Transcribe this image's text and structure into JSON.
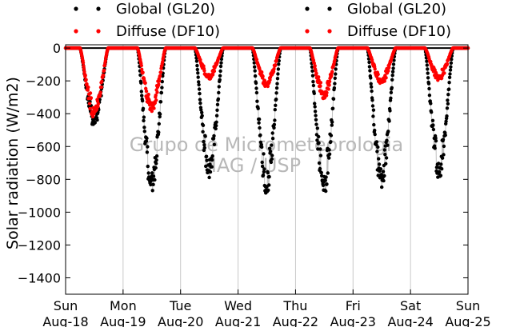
{
  "chart_data": {
    "type": "scatter",
    "ylabel": "Solar radiation (W/m2)",
    "ylim": [
      -1500,
      20
    ],
    "yticks": [
      0,
      -200,
      -400,
      -600,
      -800,
      -1000,
      -1200,
      -1400
    ],
    "xlim": [
      0,
      7
    ],
    "xtick_days": [
      "Sun",
      "Mon",
      "Tue",
      "Wed",
      "Thu",
      "Fri",
      "Sat",
      "Sun"
    ],
    "xtick_dates": [
      "Aug-18",
      "Aug-19",
      "Aug-20",
      "Aug-21",
      "Aug-22",
      "Aug-23",
      "Aug-24",
      "Aug-25"
    ],
    "grid": "vertical at day boundaries",
    "legend_position": "top, two columns",
    "zero_line": true,
    "watermark": [
      "Grupo de Micrometeorologia",
      "IAG / USP"
    ],
    "series": [
      {
        "name": "Global (GL20)",
        "color": "#000000",
        "daily_minimum": [
          -480,
          -880,
          -800,
          -890,
          -900,
          -860,
          -800
        ],
        "sunrise_day_fraction": 0.25,
        "sunset_day_fraction": 0.74
      },
      {
        "name": "Diffuse (DF10)",
        "color": "#ff0000",
        "daily_minimum": [
          -430,
          -390,
          -190,
          -240,
          -310,
          -220,
          -200
        ],
        "sunrise_day_fraction": 0.25,
        "sunset_day_fraction": 0.74
      }
    ]
  }
}
